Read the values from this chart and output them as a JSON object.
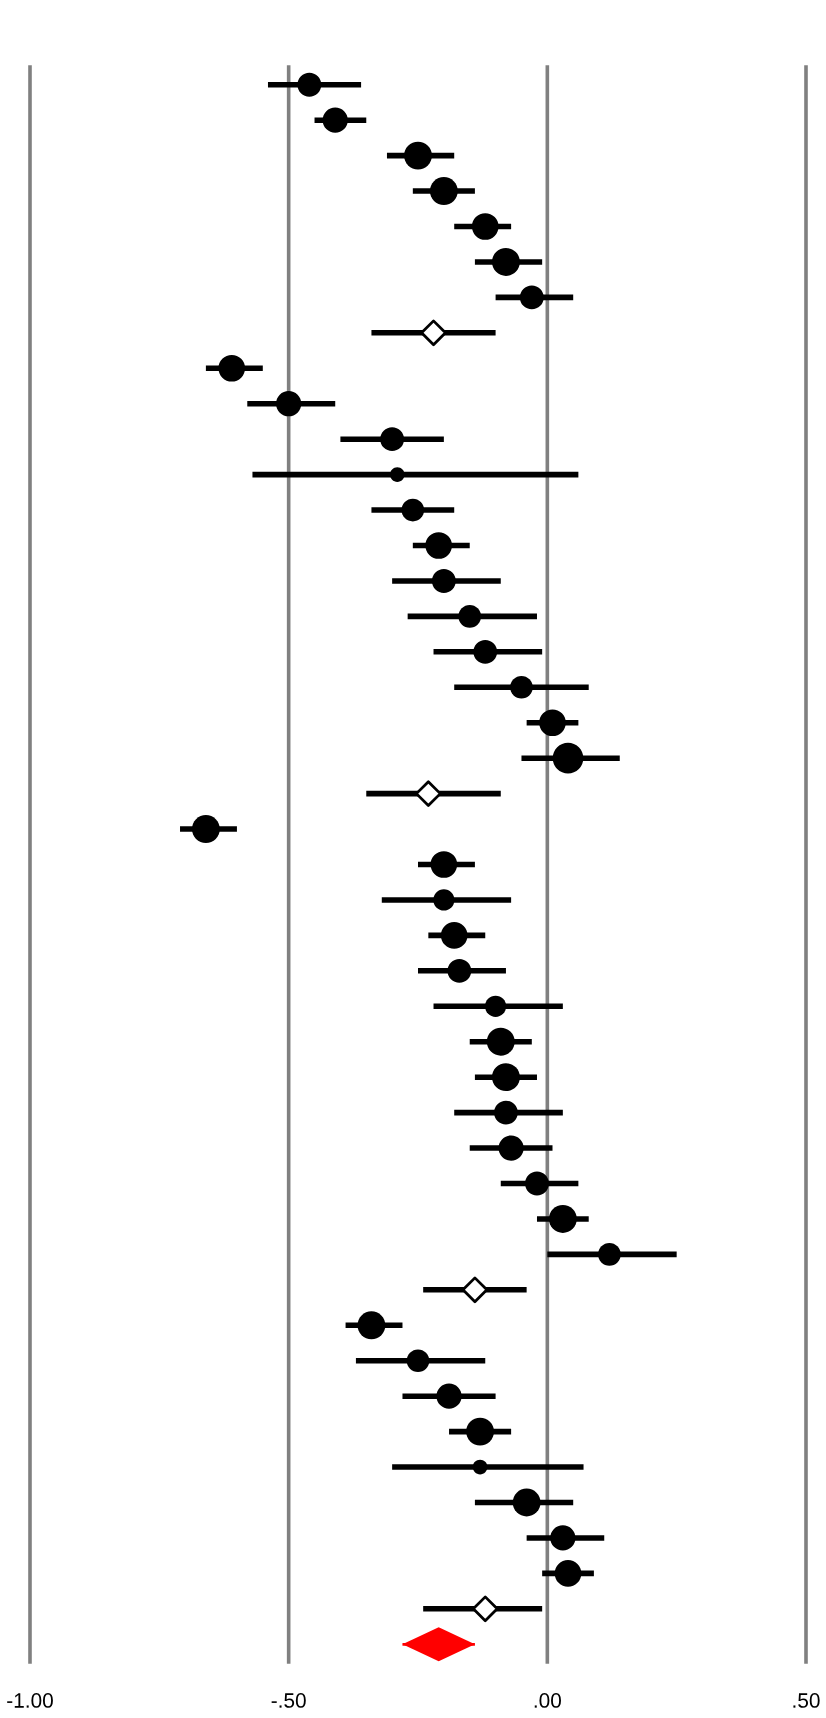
{
  "chart_data": {
    "type": "scatter",
    "orientation": "horizontal",
    "categories": [
      null,
      null,
      null,
      null,
      null,
      null,
      null,
      null,
      null,
      null,
      null,
      null,
      null,
      null,
      null,
      null,
      null,
      null,
      null,
      null,
      null,
      null,
      null,
      null,
      null,
      null,
      null,
      null,
      null,
      null,
      null,
      null,
      null,
      null,
      null,
      null,
      null,
      null,
      null,
      null,
      null,
      null,
      null,
      null,
      null
    ],
    "xlim": [
      -1,
      0.5
    ],
    "xticks": [
      {
        "value": -1,
        "label": "-1.00"
      },
      {
        "value": -0.5,
        "label": "-.50"
      },
      {
        "value": 0,
        "label": ".00"
      },
      {
        "value": 0.5,
        "label": ".50"
      }
    ],
    "grid": "x",
    "tick_labels": "x",
    "series": [
      {
        "type": "bubble",
        "color": "#000000",
        "marker": "circle",
        "line_style": "solid",
        "values": [
          -0.46,
          -0.41,
          -0.25,
          -0.2,
          -0.12,
          -0.08,
          -0.03,
          null,
          -0.61,
          -0.5,
          -0.3,
          -0.29,
          -0.26,
          -0.21,
          -0.2,
          -0.15,
          -0.12,
          -0.05,
          0.01,
          0.04,
          null,
          -0.66,
          -0.2,
          -0.2,
          -0.18,
          -0.17,
          -0.1,
          -0.09,
          -0.08,
          -0.08,
          -0.07,
          -0.02,
          0.03,
          0.12,
          null,
          -0.34,
          -0.25,
          -0.19,
          -0.13,
          -0.13,
          -0.04,
          0.03,
          0.04,
          null,
          null
        ],
        "errors": [
          [
            -0.54,
            -0.36
          ],
          [
            -0.45,
            -0.35
          ],
          [
            -0.31,
            -0.18
          ],
          [
            -0.26,
            -0.14
          ],
          [
            -0.18,
            -0.07
          ],
          [
            -0.14,
            -0.01
          ],
          [
            -0.1,
            0.05
          ],
          null,
          [
            -0.66,
            -0.55
          ],
          [
            -0.58,
            -0.41
          ],
          [
            -0.4,
            -0.2
          ],
          [
            -0.57,
            0.06
          ],
          [
            -0.34,
            -0.18
          ],
          [
            -0.26,
            -0.15
          ],
          [
            -0.3,
            -0.09
          ],
          [
            -0.27,
            -0.02
          ],
          [
            -0.22,
            -0.01
          ],
          [
            -0.18,
            0.08
          ],
          [
            -0.04,
            0.06
          ],
          [
            -0.05,
            0.14
          ],
          null,
          [
            -0.71,
            -0.6
          ],
          [
            -0.25,
            -0.14
          ],
          [
            -0.32,
            -0.07
          ],
          [
            -0.23,
            -0.12
          ],
          [
            -0.25,
            -0.08
          ],
          [
            -0.22,
            0.03
          ],
          [
            -0.15,
            -0.03
          ],
          [
            -0.14,
            -0.02
          ],
          [
            -0.18,
            0.03
          ],
          [
            -0.15,
            0.01
          ],
          [
            -0.09,
            0.06
          ],
          [
            -0.02,
            0.08
          ],
          [
            0.0,
            0.25
          ],
          null,
          [
            -0.39,
            -0.28
          ],
          [
            -0.37,
            -0.12
          ],
          [
            -0.28,
            -0.1
          ],
          [
            -0.19,
            -0.07
          ],
          [
            -0.3,
            0.07
          ],
          [
            -0.14,
            0.05
          ],
          [
            -0.04,
            0.11
          ],
          [
            -0.01,
            0.09
          ],
          null,
          null
        ],
        "sizes": [
          0.61,
          0.68,
          0.83,
          0.83,
          0.76,
          0.83,
          0.61,
          null,
          0.76,
          0.68,
          0.61,
          0.23,
          0.55,
          0.76,
          0.61,
          0.55,
          0.61,
          0.55,
          0.76,
          1,
          null,
          0.83,
          0.76,
          0.48,
          0.76,
          0.61,
          0.48,
          0.83,
          0.83,
          0.61,
          0.68,
          0.61,
          0.83,
          0.55,
          null,
          0.83,
          0.55,
          0.68,
          0.83,
          0.23,
          0.83,
          0.68,
          0.76,
          null,
          null
        ]
      },
      {
        "color": "#000000",
        "marker": "diamond",
        "line_style": "solid",
        "values": [
          null,
          null,
          null,
          null,
          null,
          null,
          null,
          -0.22,
          null,
          null,
          null,
          null,
          null,
          null,
          null,
          null,
          null,
          null,
          null,
          null,
          -0.23,
          null,
          null,
          null,
          null,
          null,
          null,
          null,
          null,
          null,
          null,
          null,
          null,
          null,
          -0.14,
          null,
          null,
          null,
          null,
          null,
          null,
          null,
          null,
          -0.12,
          null
        ],
        "errors": [
          null,
          null,
          null,
          null,
          null,
          null,
          null,
          [
            -0.34,
            -0.1
          ],
          null,
          null,
          null,
          null,
          null,
          null,
          null,
          null,
          null,
          null,
          null,
          null,
          [
            -0.35,
            -0.09
          ],
          null,
          null,
          null,
          null,
          null,
          null,
          null,
          null,
          null,
          null,
          null,
          null,
          null,
          [
            -0.24,
            -0.04
          ],
          null,
          null,
          null,
          null,
          null,
          null,
          null,
          null,
          [
            -0.24,
            -0.01
          ],
          null
        ]
      },
      {
        "color": "#ff0000",
        "marker": "diamond",
        "values": [
          null,
          null,
          null,
          null,
          null,
          null,
          null,
          null,
          null,
          null,
          null,
          null,
          null,
          null,
          null,
          null,
          null,
          null,
          null,
          null,
          null,
          null,
          null,
          null,
          null,
          null,
          null,
          null,
          null,
          null,
          null,
          null,
          null,
          null,
          null,
          null,
          null,
          null,
          null,
          null,
          null,
          null,
          null,
          null,
          -0.21
        ],
        "errors": [
          null,
          null,
          null,
          null,
          null,
          null,
          null,
          null,
          null,
          null,
          null,
          null,
          null,
          null,
          null,
          null,
          null,
          null,
          null,
          null,
          null,
          null,
          null,
          null,
          null,
          null,
          null,
          null,
          null,
          null,
          null,
          null,
          null,
          null,
          null,
          null,
          null,
          null,
          null,
          null,
          null,
          null,
          null,
          null,
          [
            -0.28,
            -0.14
          ]
        ]
      }
    ]
  }
}
